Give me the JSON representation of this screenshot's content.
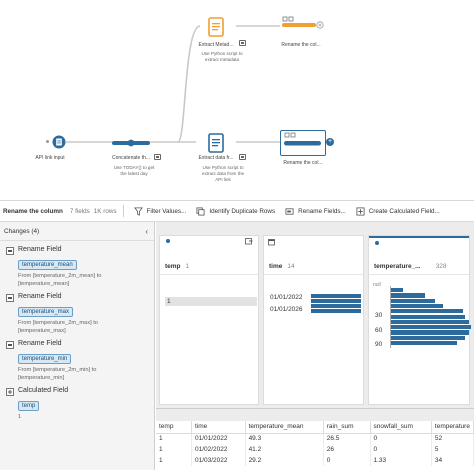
{
  "flow": {
    "nodes": {
      "api_input": {
        "label": "API link input"
      },
      "concatenate": {
        "label": "Concatenate th...",
        "desc": [
          "Use TODAY() to get",
          "the latest day"
        ]
      },
      "extract_metadata": {
        "label": "Extract Metad...",
        "desc": [
          "Use Python script to",
          "extract metadata"
        ]
      },
      "rename_top": {
        "label": "Rename the col..."
      },
      "extract_data": {
        "label": "Extract data fr...",
        "desc": [
          "Use Python script to",
          "extract data from the",
          "API link"
        ]
      },
      "rename_bottom": {
        "label": "Rename the col..."
      }
    },
    "colors": {
      "orange": "#f0a030",
      "blue": "#2d6b9c",
      "link": "#c8c8c8"
    }
  },
  "toolbar": {
    "step_title": "Rename the column",
    "fields": "7 fields",
    "rows": "1K rows",
    "filter": "Filter Values...",
    "duplicates": "Identify Duplicate Rows",
    "rename": "Rename Fields...",
    "calculated": "Create Calculated Field..."
  },
  "changes": {
    "header": "Changes (4)",
    "items": [
      {
        "title": "Rename Field",
        "pill": "temperature_mean",
        "desc": [
          "From [temperature_2m_mean] to",
          "[temperature_mean]"
        ]
      },
      {
        "title": "Rename Field",
        "pill": "temperature_max",
        "desc": [
          "From [temperature_2m_max] to",
          "[temperature_max]"
        ]
      },
      {
        "title": "Rename Field",
        "pill": "temperature_min",
        "desc": [
          "From [temperature_2m_min] to",
          "[temperature_min]"
        ]
      },
      {
        "title": "Calculated Field",
        "pill": "temp",
        "desc": [
          "1"
        ]
      }
    ]
  },
  "profile": {
    "cards": [
      {
        "name": "temp",
        "count": "1",
        "values": [
          "1"
        ]
      },
      {
        "name": "time",
        "count": "14",
        "values": [
          "01/01/2022",
          "01/01/2026"
        ]
      },
      {
        "name": "temperature_...",
        "count": "328",
        "ticks": [
          "null",
          "30",
          "60",
          "90"
        ]
      }
    ]
  },
  "grid": {
    "columns": [
      "temp",
      "time",
      "temperature_mean",
      "rain_sum",
      "snowfall_sum",
      "temperature"
    ],
    "rows": [
      [
        "1",
        "01/01/2022",
        "49.3",
        "26.5",
        "0",
        "52"
      ],
      [
        "1",
        "01/02/2022",
        "41.2",
        "26",
        "0",
        "5"
      ],
      [
        "1",
        "01/03/2022",
        "29.2",
        "0",
        "1.33",
        "34"
      ]
    ]
  }
}
